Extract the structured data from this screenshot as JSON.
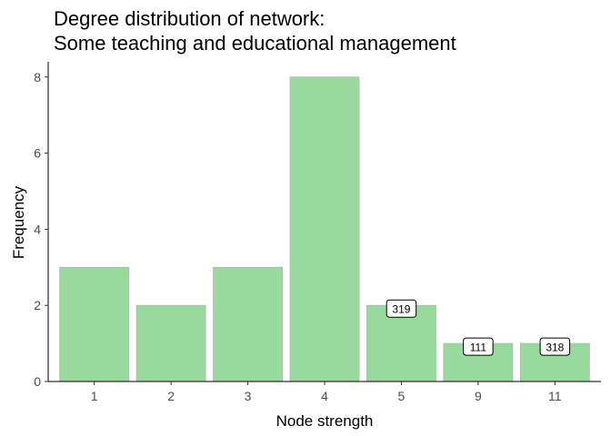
{
  "chart_data": {
    "type": "bar",
    "title": "Degree distribution of network:",
    "subtitle": "Some teaching and educational management",
    "xlabel": "Node strength",
    "ylabel": "Frequency",
    "categories": [
      "1",
      "2",
      "3",
      "4",
      "5",
      "9",
      "11"
    ],
    "values": [
      3,
      2,
      3,
      8,
      2,
      1,
      1
    ],
    "bar_labels": [
      "",
      "",
      "",
      "",
      "319",
      "111",
      "318"
    ],
    "ylim": [
      0,
      8.4
    ],
    "yticks": [
      0,
      2,
      4,
      6,
      8
    ],
    "grid": false,
    "legend": "none",
    "colors": {
      "bar_fill": "#9ad99e",
      "bar_stroke": "#b3b3b3",
      "axis": "#000000",
      "tick_text": "#4d4d4d",
      "label_box_fill": "#ffffff"
    }
  }
}
